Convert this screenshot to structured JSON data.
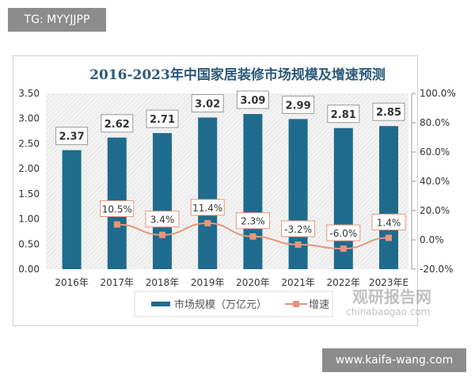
{
  "watermark_tag": "TG: MYYJJPP",
  "watermark_site": "www.kaifa-wang.com",
  "logo": {
    "text": "观研报告网",
    "sub": "chinabaogao.com"
  },
  "chart_data": {
    "type": "bar+line",
    "title": "2016-2023年中国家居装修市场规模及增速预测",
    "categories": [
      "2016年",
      "2017年",
      "2018年",
      "2019年",
      "2020年",
      "2021年",
      "2022年",
      "2023年E"
    ],
    "series": [
      {
        "name": "市场规模（万亿元）",
        "type": "bar",
        "axis": "left",
        "color": "#1f6b8e",
        "values": [
          2.37,
          2.62,
          2.71,
          3.02,
          3.09,
          2.99,
          2.81,
          2.85
        ],
        "labels": [
          "2.37",
          "2.62",
          "2.71",
          "3.02",
          "3.09",
          "2.99",
          "2.81",
          "2.85"
        ]
      },
      {
        "name": "增速",
        "type": "line",
        "axis": "right",
        "color": "#e8957a",
        "values": [
          null,
          10.5,
          3.4,
          11.4,
          2.3,
          -3.2,
          -6.0,
          1.4
        ],
        "labels": [
          "",
          "10.5%",
          "3.4%",
          "11.4%",
          "2.3%",
          "-3.2%",
          "-6.0%",
          "1.4%"
        ]
      }
    ],
    "y_left": {
      "range": [
        0,
        3.5
      ],
      "ticks": [
        "0.00",
        "0.50",
        "1.00",
        "1.50",
        "2.00",
        "2.50",
        "3.00",
        "3.50"
      ]
    },
    "y_right": {
      "range": [
        -20,
        100
      ],
      "ticks": [
        "-20.0%",
        "0.0%",
        "20.0%",
        "40.0%",
        "60.0%",
        "80.0%",
        "100.0%"
      ]
    },
    "legend": "bottom",
    "grid": false
  }
}
